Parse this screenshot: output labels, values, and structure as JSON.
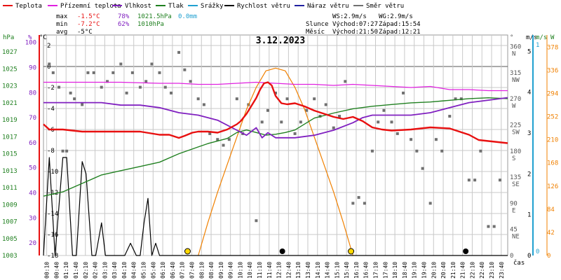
{
  "colors": {
    "teplota": "#e81010",
    "rosny_bod": "#e020e0",
    "vlhkost": "#8020c0",
    "tlak": "#208020",
    "srazky": "#20a0d0",
    "rychlost": "#000000",
    "naraz": "#2020a0",
    "smer": "#707070",
    "sun": "#f08000",
    "grid": "#c8c8c8"
  },
  "legend": [
    {
      "label": "Teplota",
      "color_key": "teplota"
    },
    {
      "label": "Přízemní teplota",
      "color_key": "rosny_bod"
    },
    {
      "label": "Vlhkost",
      "color_key": "vlhkost"
    },
    {
      "label": "Tlak",
      "color_key": "tlak"
    },
    {
      "label": "Srážky",
      "color_key": "srazky"
    },
    {
      "label": "Rychlost větru",
      "color_key": "rychlost"
    },
    {
      "label": "Náraz větru",
      "color_key": "naraz"
    },
    {
      "label": "Směr větru",
      "color_key": "smer"
    }
  ],
  "stats": {
    "max": {
      "label": "max",
      "temp": "-1.5°C",
      "hum": "78%",
      "press": "1021.5hPa",
      "rain": "0.0mm"
    },
    "min": {
      "label": "min",
      "temp": "-7.2°C",
      "hum": "62%",
      "press": "1010hPa"
    },
    "avg": {
      "label": "avg",
      "temp": "-5°C"
    }
  },
  "wind_info": {
    "ws": "WS:2.9m/s",
    "wg": "WG:2.9m/s"
  },
  "sun_info": {
    "label": "Slunce",
    "rise": "Východ:07:27",
    "set": "Západ:15:54"
  },
  "moon_info": {
    "label": "Měsíc",
    "rise": "Východ:21:50",
    "set": "Západ:12:21"
  },
  "date": "3.12.2023",
  "axes": {
    "hpa_title": "hPa",
    "pct_title": "%",
    "c_title": "°C",
    "deg_title": "°",
    "ms_title": "m/s",
    "w_title": "W",
    "hpa_ticks": [
      "1027",
      "1025",
      "1023",
      "1021",
      "1019",
      "1017",
      "1015",
      "1013",
      "1011",
      "1009",
      "1007",
      "1005",
      "1003"
    ],
    "pct_ticks": [
      "100",
      "90",
      "80",
      "70",
      "60",
      "50",
      "40",
      "30",
      "20"
    ],
    "c_ticks": [
      "2",
      "0",
      "-2",
      "-4",
      "-6",
      "-8",
      "-10",
      "-12",
      "-14",
      "-16",
      "-18"
    ],
    "deg_ticks": [
      {
        "deg": "360",
        "dir": "N"
      },
      {
        "deg": "315",
        "dir": "NW"
      },
      {
        "deg": "270",
        "dir": "W"
      },
      {
        "deg": "225",
        "dir": "SW"
      },
      {
        "deg": "180",
        "dir": "S"
      },
      {
        "deg": "135",
        "dir": "SE"
      },
      {
        "deg": "90",
        "dir": "E"
      },
      {
        "deg": "45",
        "dir": "NE"
      },
      {
        "deg": "0",
        "dir": ""
      }
    ],
    "ms_ticks": [
      "5",
      "4",
      "3",
      "2",
      "1",
      "0"
    ],
    "mm_ticks": [
      "1",
      "0"
    ],
    "w_ticks": [
      "378",
      "336",
      "294",
      "252",
      "210",
      "168",
      "126",
      "84",
      "42",
      "0"
    ],
    "time_ticks": [
      "00:10",
      "00:40",
      "01:10",
      "01:40",
      "02:10",
      "02:40",
      "03:10",
      "03:40",
      "04:10",
      "04:40",
      "05:10",
      "05:40",
      "06:10",
      "06:40",
      "07:10",
      "07:40",
      "08:10",
      "08:40",
      "09:10",
      "09:40",
      "10:10",
      "10:40",
      "11:10",
      "11:40",
      "12:10",
      "12:40",
      "13:10",
      "13:40",
      "14:10",
      "14:40",
      "15:10",
      "15:40",
      "16:10",
      "16:40",
      "17:10",
      "17:40",
      "18:10",
      "18:40",
      "19:10",
      "19:40",
      "20:10",
      "20:40",
      "21:10",
      "21:40",
      "22:10",
      "22:40",
      "23:10",
      "23:40"
    ],
    "x_title": "čas"
  },
  "chart_data": {
    "type": "line",
    "title": "3.12.2023",
    "x_range_hours": [
      0,
      24
    ],
    "temp_range_c": [
      -18,
      3
    ],
    "pressure_range_hpa": [
      1003,
      1029
    ],
    "humidity_range_pct": [
      15,
      103
    ],
    "direction_range_deg": [
      0,
      380
    ],
    "wind_range_ms": [
      0,
      5.4
    ],
    "solar_range_w": [
      0,
      400
    ],
    "series": [
      {
        "name": "Teplota",
        "unit": "°C",
        "x": [
          0,
          0.3,
          1,
          2,
          3,
          4,
          5,
          6,
          6.5,
          7,
          7.3,
          7.7,
          8,
          8.5,
          9,
          9.5,
          10,
          10.2,
          10.5,
          10.8,
          11,
          11.2,
          11.4,
          11.6,
          11.8,
          12,
          12.3,
          12.6,
          13,
          13.5,
          14,
          14.5,
          15,
          15.5,
          16,
          16.5,
          17,
          17.5,
          18,
          19,
          20,
          21,
          21.5,
          22,
          22.5,
          23,
          23.5,
          24
        ],
        "y": [
          -5.5,
          -6,
          -6,
          -6.2,
          -6.2,
          -6.2,
          -6.2,
          -6.5,
          -6.5,
          -6.8,
          -6.6,
          -6.3,
          -6.2,
          -6.2,
          -6.3,
          -6,
          -5.5,
          -5.2,
          -4.5,
          -3.6,
          -3,
          -2.2,
          -1.6,
          -1.5,
          -1.8,
          -2.8,
          -3.5,
          -3.6,
          -3.5,
          -3.8,
          -4.2,
          -4.5,
          -4.8,
          -5,
          -4.8,
          -5.2,
          -5.8,
          -6,
          -6.1,
          -6,
          -5.8,
          -5.9,
          -6.2,
          -6.5,
          -7,
          -7.1,
          -7.2,
          -7.3
        ]
      },
      {
        "name": "Přízemní teplota",
        "unit": "°C",
        "x": [
          0,
          2,
          4,
          6,
          7,
          8,
          9,
          10,
          11,
          12,
          13,
          14,
          15,
          16,
          17,
          18,
          19,
          20,
          21,
          22,
          23,
          24
        ],
        "y": [
          -1.5,
          -1.5,
          -1.5,
          -1.6,
          -1.6,
          -1.7,
          -1.7,
          -1.6,
          -1.5,
          -1.6,
          -1.7,
          -1.7,
          -1.8,
          -1.7,
          -1.8,
          -1.9,
          -2,
          -1.9,
          -2.2,
          -2.2,
          -2.3,
          -2.3
        ]
      },
      {
        "name": "Vlhkost",
        "unit": "%",
        "x": [
          0,
          1,
          2,
          3,
          4,
          5,
          6,
          7,
          8,
          9,
          10,
          10.5,
          11,
          11.3,
          11.6,
          12,
          12.5,
          13,
          14,
          15,
          16,
          16.5,
          17,
          18,
          19,
          20,
          21,
          22,
          23,
          24
        ],
        "y": [
          76,
          76,
          76,
          76,
          75,
          75,
          74,
          72,
          71,
          69,
          65,
          63,
          66,
          62,
          64,
          62,
          62,
          62,
          63,
          65,
          68,
          70,
          71,
          71,
          71,
          72,
          74,
          76,
          77,
          78
        ]
      },
      {
        "name": "Tlak",
        "unit": "hPa",
        "x": [
          0,
          1,
          2,
          3,
          4,
          5,
          6,
          7,
          8,
          8.5,
          9,
          9.5,
          10,
          10.5,
          11,
          11.5,
          12,
          12.5,
          13,
          13.5,
          14,
          15,
          16,
          17,
          18,
          19,
          20,
          21,
          22,
          23,
          24
        ],
        "y": [
          1010,
          1010.5,
          1011.5,
          1012.5,
          1013,
          1013.5,
          1014,
          1015,
          1015.8,
          1016.2,
          1016.5,
          1016.8,
          1017.5,
          1017.8,
          1017.5,
          1017.2,
          1017.3,
          1017.5,
          1017.8,
          1018.5,
          1019.2,
          1019.8,
          1020.3,
          1020.6,
          1020.8,
          1021,
          1021.1,
          1021.3,
          1021.5,
          1021.6,
          1021.5
        ]
      },
      {
        "name": "Rychlost větru",
        "unit": "m/s",
        "x": [
          0,
          0.3,
          0.6,
          1,
          1.2,
          1.5,
          1.7,
          2,
          2.2,
          2.5,
          2.7,
          3,
          3.2,
          3.5,
          3.7,
          4,
          4.2,
          4.5,
          4.8,
          5,
          5.2,
          5.4,
          5.6,
          5.8,
          6,
          24
        ],
        "y": [
          0,
          2.4,
          0,
          2.4,
          2.4,
          0,
          0,
          2.3,
          2,
          0,
          0,
          0.8,
          0,
          0,
          0,
          0,
          0,
          0.3,
          0,
          0,
          0.8,
          1.4,
          0,
          0.3,
          0,
          0
        ]
      },
      {
        "name": "Solar",
        "unit": "W",
        "x": [
          8,
          8.5,
          9,
          9.5,
          10,
          10.5,
          11,
          11.5,
          12,
          12.5,
          13,
          13.5,
          14,
          14.5,
          15,
          15.5,
          16
        ],
        "y": [
          0,
          60,
          115,
          165,
          215,
          265,
          305,
          335,
          340,
          335,
          305,
          265,
          215,
          165,
          115,
          60,
          0
        ]
      }
    ],
    "wind_direction_samples": {
      "x": [
        0.3,
        0.5,
        0.8,
        1.0,
        1.2,
        1.4,
        1.6,
        2.0,
        2.3,
        2.6,
        3.0,
        3.3,
        3.6,
        4.0,
        4.3,
        4.6,
        5.0,
        5.3,
        5.6,
        6.0,
        6.3,
        6.6,
        7.0,
        7.3,
        7.6,
        8.0,
        8.3,
        8.6,
        9.0,
        9.3,
        9.6,
        10.0,
        10.3,
        10.6,
        11.0,
        11.3,
        11.6,
        12.0,
        12.3,
        12.6,
        13.0,
        13.3,
        13.6,
        14.0,
        14.3,
        14.6,
        15.0,
        15.3,
        15.6,
        16.0,
        16.3,
        16.6,
        17.0,
        17.3,
        17.6,
        18.0,
        18.3,
        18.6,
        19.0,
        19.3,
        19.6,
        20.0,
        20.3,
        20.6,
        21.0,
        21.3,
        21.6,
        22.0,
        22.3,
        22.6,
        23.0,
        23.3,
        23.6
      ],
      "deg": [
        330,
        315,
        290,
        180,
        180,
        280,
        270,
        260,
        315,
        315,
        290,
        300,
        315,
        330,
        280,
        315,
        290,
        300,
        330,
        315,
        290,
        280,
        350,
        320,
        300,
        270,
        260,
        210,
        200,
        190,
        200,
        270,
        210,
        260,
        60,
        230,
        250,
        280,
        230,
        270,
        210,
        230,
        250,
        270,
        240,
        260,
        220,
        240,
        300,
        90,
        100,
        90,
        180,
        230,
        250,
        230,
        210,
        280,
        200,
        180,
        150,
        90,
        200,
        180,
        240,
        270,
        270,
        130,
        130,
        180,
        50,
        50,
        130
      ]
    },
    "sun_markers_hours": [
      7.45,
      15.9
    ],
    "moon_markers_hours": [
      12.35,
      21.83
    ]
  }
}
